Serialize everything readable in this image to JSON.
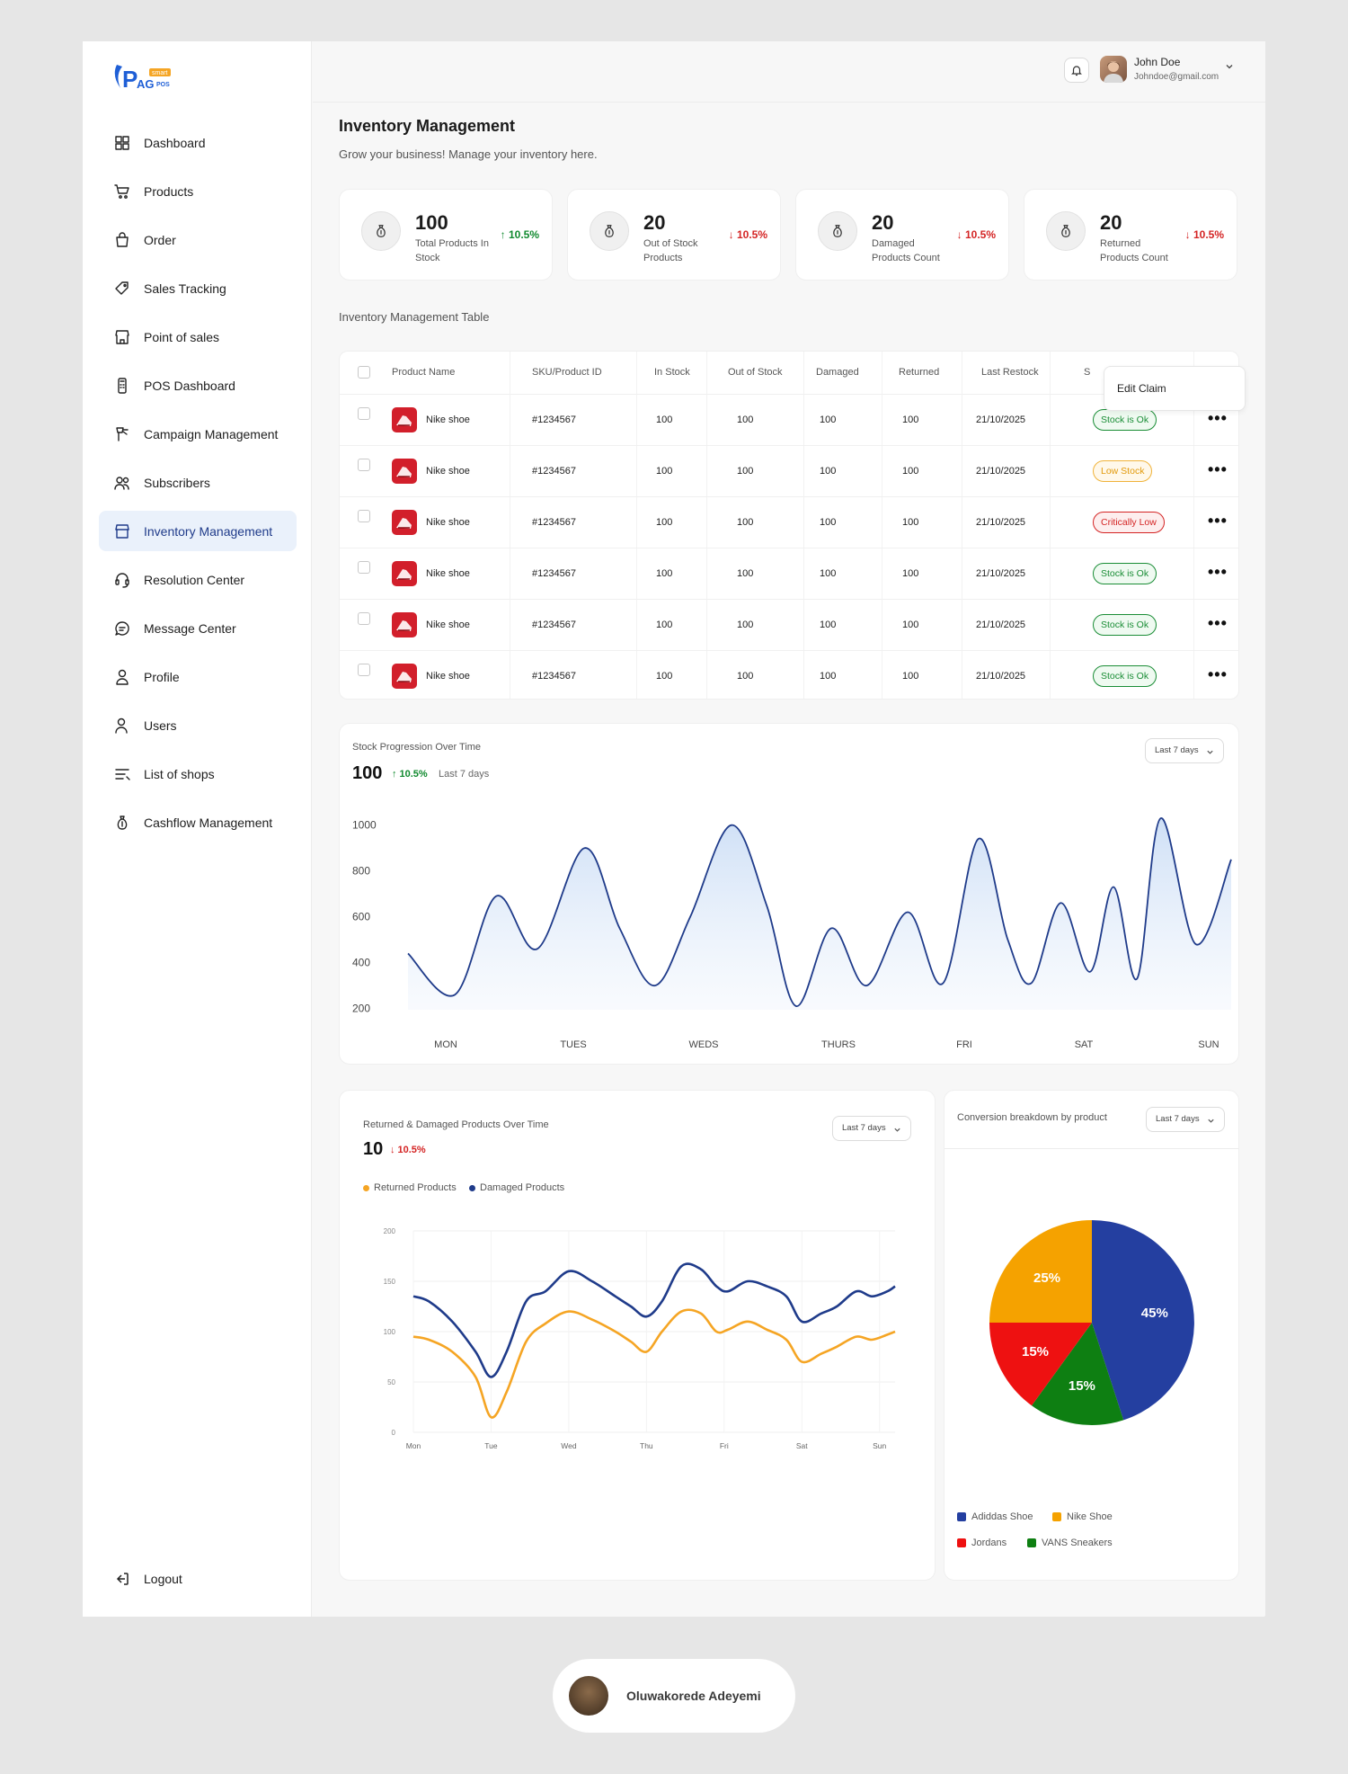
{
  "brand": {
    "logo_text": "PAG",
    "logo_sub": "POS",
    "logo_tag": "smart"
  },
  "sidebar": {
    "items": [
      {
        "label": "Dashboard",
        "icon": "grid-icon"
      },
      {
        "label": "Products",
        "icon": "cart-icon"
      },
      {
        "label": "Order",
        "icon": "bag-icon"
      },
      {
        "label": "Sales Tracking",
        "icon": "tag-icon"
      },
      {
        "label": "Point of sales",
        "icon": "store-icon"
      },
      {
        "label": "POS Dashboard",
        "icon": "pos-terminal-icon"
      },
      {
        "label": "Campaign Management",
        "icon": "megaphone-icon"
      },
      {
        "label": "Subscribers",
        "icon": "people-icon"
      },
      {
        "label": "Inventory Management",
        "icon": "shop-icon",
        "active": true
      },
      {
        "label": "Resolution Center",
        "icon": "headset-icon"
      },
      {
        "label": "Message Center",
        "icon": "chat-icon"
      },
      {
        "label": "Profile",
        "icon": "user-icon"
      },
      {
        "label": "Users",
        "icon": "users-icon"
      },
      {
        "label": "List of shops",
        "icon": "list-icon"
      },
      {
        "label": "Cashflow Management",
        "icon": "moneybag-icon"
      }
    ],
    "logout": "Logout"
  },
  "user": {
    "name": "John Doe",
    "email": "Johndoe@gmail.com"
  },
  "page": {
    "title": "Inventory Management",
    "subtitle": "Grow your business! Manage your inventory here."
  },
  "stats": [
    {
      "value": "100",
      "label": "Total Products In Stock",
      "change": "10.5%",
      "dir": "up"
    },
    {
      "value": "20",
      "label": "Out of Stock Products",
      "change": "10.5%",
      "dir": "down"
    },
    {
      "value": "20",
      "label": "Damaged Products Count",
      "change": "10.5%",
      "dir": "down"
    },
    {
      "value": "20",
      "label": "Returned Products Count",
      "change": "10.5%",
      "dir": "down"
    }
  ],
  "table": {
    "title": "Inventory Management Table",
    "headers": [
      "Product Name",
      "SKU/Product ID",
      "In Stock",
      "Out of Stock",
      "Damaged",
      "Returned",
      "Last Restock",
      "S"
    ],
    "popup": "Edit Claim",
    "rows": [
      {
        "name": "Nike shoe",
        "sku": "#1234567",
        "in": "100",
        "out": "100",
        "dmg": "100",
        "ret": "100",
        "date": "21/10/2025",
        "status": "Stock is Ok",
        "kind": "ok"
      },
      {
        "name": "Nike shoe",
        "sku": "#1234567",
        "in": "100",
        "out": "100",
        "dmg": "100",
        "ret": "100",
        "date": "21/10/2025",
        "status": "Low Stock",
        "kind": "low"
      },
      {
        "name": "Nike shoe",
        "sku": "#1234567",
        "in": "100",
        "out": "100",
        "dmg": "100",
        "ret": "100",
        "date": "21/10/2025",
        "status": "Critically Low",
        "kind": "crit"
      },
      {
        "name": "Nike shoe",
        "sku": "#1234567",
        "in": "100",
        "out": "100",
        "dmg": "100",
        "ret": "100",
        "date": "21/10/2025",
        "status": "Stock is Ok",
        "kind": "ok"
      },
      {
        "name": "Nike shoe",
        "sku": "#1234567",
        "in": "100",
        "out": "100",
        "dmg": "100",
        "ret": "100",
        "date": "21/10/2025",
        "status": "Stock is Ok",
        "kind": "ok"
      },
      {
        "name": "Nike shoe",
        "sku": "#1234567",
        "in": "100",
        "out": "100",
        "dmg": "100",
        "ret": "100",
        "date": "21/10/2025",
        "status": "Stock is Ok",
        "kind": "ok"
      }
    ]
  },
  "stock_chart": {
    "title": "Stock Progression Over Time",
    "value": "100",
    "change": "10.5%",
    "period": "Last 7 days",
    "select": "Last 7 days"
  },
  "rd_chart": {
    "title": "Returned & Damaged Products Over Time",
    "value": "10",
    "change": "10.5%",
    "select": "Last 7 days"
  },
  "pie_panel": {
    "title": "Conversion breakdown by product",
    "select": "Last 7 days"
  },
  "footer": {
    "name": "Oluwakorede Adeyemi"
  },
  "chart_data": [
    {
      "type": "area",
      "title": "Stock Progression Over Time",
      "categories": [
        "MON",
        "TUES",
        "WEDS",
        "THURS",
        "FRI",
        "SAT",
        "SUN"
      ],
      "yticks": [
        200,
        400,
        600,
        800,
        1000
      ],
      "ylim": [
        100,
        1050
      ],
      "x": [
        0,
        0.4,
        0.75,
        1.1,
        1.5,
        1.8,
        2.1,
        2.4,
        2.75,
        3.05,
        3.3,
        3.6,
        3.9,
        4.25,
        4.55,
        4.85,
        5.1,
        5.3,
        5.55,
        5.8,
        6.0,
        6.2,
        6.4,
        6.7,
        7.0
      ],
      "y": [
        440,
        260,
        690,
        460,
        900,
        550,
        300,
        600,
        1000,
        650,
        210,
        550,
        300,
        620,
        310,
        940,
        500,
        310,
        660,
        360,
        730,
        330,
        1030,
        480,
        850
      ],
      "color": "#1f3b8a"
    },
    {
      "type": "line",
      "title": "Returned & Damaged Products Over Time",
      "categories": [
        "Mon",
        "Tue",
        "Wed",
        "Thu",
        "Fri",
        "Sat",
        "Sun"
      ],
      "yticks": [
        0,
        50,
        100,
        150,
        200
      ],
      "ylim": [
        0,
        200
      ],
      "series": [
        {
          "name": "Returned Products",
          "color": "#f5a524",
          "x": [
            0,
            0.2,
            0.5,
            0.8,
            1.0,
            1.2,
            1.45,
            1.7,
            2.0,
            2.3,
            2.6,
            2.8,
            3.0,
            3.2,
            3.45,
            3.7,
            3.9,
            4.05,
            4.3,
            4.55,
            4.8,
            5.0,
            5.25,
            5.45,
            5.7,
            5.9,
            6.1,
            6.2
          ],
          "y": [
            95,
            92,
            80,
            55,
            15,
            40,
            90,
            108,
            120,
            112,
            100,
            90,
            80,
            100,
            120,
            118,
            100,
            102,
            110,
            102,
            92,
            70,
            78,
            85,
            95,
            92,
            97,
            100
          ]
        },
        {
          "name": "Damaged Products",
          "color": "#1f3b8a",
          "x": [
            0,
            0.2,
            0.5,
            0.8,
            1.0,
            1.2,
            1.45,
            1.7,
            2.0,
            2.3,
            2.6,
            2.8,
            3.0,
            3.2,
            3.45,
            3.7,
            3.9,
            4.05,
            4.3,
            4.55,
            4.8,
            5.0,
            5.25,
            5.45,
            5.7,
            5.9,
            6.1,
            6.2
          ],
          "y": [
            135,
            130,
            110,
            80,
            55,
            80,
            130,
            140,
            160,
            150,
            135,
            125,
            115,
            130,
            165,
            162,
            145,
            140,
            150,
            145,
            135,
            110,
            118,
            125,
            140,
            135,
            140,
            145
          ]
        }
      ]
    },
    {
      "type": "pie",
      "title": "Conversion breakdown by product",
      "labels": [
        "Adiddas Shoe",
        "Nike Shoe",
        "Jordans",
        "VANS Sneakers"
      ],
      "values": [
        45,
        25,
        15,
        15
      ],
      "order": [
        "Adiddas Shoe",
        "VANS Sneakers",
        "Jordans",
        "Nike Shoe"
      ],
      "colors": {
        "Adiddas Shoe": "#243fa0",
        "Nike Shoe": "#f5a200",
        "Jordans": "#ee1111",
        "VANS Sneakers": "#0e7f12"
      }
    }
  ]
}
